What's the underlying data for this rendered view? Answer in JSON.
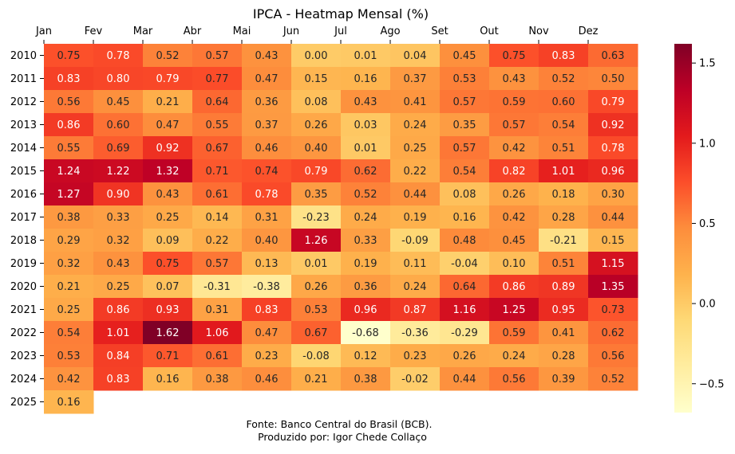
{
  "chart_data": {
    "type": "heatmap",
    "title": "IPCA - Heatmap Mensal (%)",
    "xlabel": "",
    "ylabel": "",
    "x_categories": [
      "Jan",
      "Fev",
      "Mar",
      "Abr",
      "Mai",
      "Jun",
      "Jul",
      "Ago",
      "Set",
      "Out",
      "Nov",
      "Dez"
    ],
    "y_categories": [
      "2010",
      "2011",
      "2012",
      "2013",
      "2014",
      "2015",
      "2016",
      "2017",
      "2018",
      "2019",
      "2020",
      "2021",
      "2022",
      "2023",
      "2024",
      "2025"
    ],
    "values": [
      [
        0.75,
        0.78,
        0.52,
        0.57,
        0.43,
        0.0,
        0.01,
        0.04,
        0.45,
        0.75,
        0.83,
        0.63
      ],
      [
        0.83,
        0.8,
        0.79,
        0.77,
        0.47,
        0.15,
        0.16,
        0.37,
        0.53,
        0.43,
        0.52,
        0.5
      ],
      [
        0.56,
        0.45,
        0.21,
        0.64,
        0.36,
        0.08,
        0.43,
        0.41,
        0.57,
        0.59,
        0.6,
        0.79
      ],
      [
        0.86,
        0.6,
        0.47,
        0.55,
        0.37,
        0.26,
        0.03,
        0.24,
        0.35,
        0.57,
        0.54,
        0.92
      ],
      [
        0.55,
        0.69,
        0.92,
        0.67,
        0.46,
        0.4,
        0.01,
        0.25,
        0.57,
        0.42,
        0.51,
        0.78
      ],
      [
        1.24,
        1.22,
        1.32,
        0.71,
        0.74,
        0.79,
        0.62,
        0.22,
        0.54,
        0.82,
        1.01,
        0.96
      ],
      [
        1.27,
        0.9,
        0.43,
        0.61,
        0.78,
        0.35,
        0.52,
        0.44,
        0.08,
        0.26,
        0.18,
        0.3
      ],
      [
        0.38,
        0.33,
        0.25,
        0.14,
        0.31,
        -0.23,
        0.24,
        0.19,
        0.16,
        0.42,
        0.28,
        0.44
      ],
      [
        0.29,
        0.32,
        0.09,
        0.22,
        0.4,
        1.26,
        0.33,
        -0.09,
        0.48,
        0.45,
        -0.21,
        0.15
      ],
      [
        0.32,
        0.43,
        0.75,
        0.57,
        0.13,
        0.01,
        0.19,
        0.11,
        -0.04,
        0.1,
        0.51,
        1.15
      ],
      [
        0.21,
        0.25,
        0.07,
        -0.31,
        -0.38,
        0.26,
        0.36,
        0.24,
        0.64,
        0.86,
        0.89,
        1.35
      ],
      [
        0.25,
        0.86,
        0.93,
        0.31,
        0.83,
        0.53,
        0.96,
        0.87,
        1.16,
        1.25,
        0.95,
        0.73
      ],
      [
        0.54,
        1.01,
        1.62,
        1.06,
        0.47,
        0.67,
        -0.68,
        -0.36,
        -0.29,
        0.59,
        0.41,
        0.62
      ],
      [
        0.53,
        0.84,
        0.71,
        0.61,
        0.23,
        -0.08,
        0.12,
        0.23,
        0.26,
        0.24,
        0.28,
        0.56
      ],
      [
        0.42,
        0.83,
        0.16,
        0.38,
        0.46,
        0.21,
        0.38,
        -0.02,
        0.44,
        0.56,
        0.39,
        0.52
      ],
      [
        0.16,
        null,
        null,
        null,
        null,
        null,
        null,
        null,
        null,
        null,
        null,
        null
      ]
    ],
    "value_format": "0.00",
    "color_scale": {
      "name": "YlOrRd",
      "vmin": -0.68,
      "vmax": 1.62
    },
    "colorbar_ticks": [
      1.5,
      1.0,
      0.5,
      0.0,
      -0.5
    ],
    "colorbar_tick_labels": [
      "1.5",
      "1.0",
      "0.5",
      "0.0",
      "−0.5"
    ],
    "grid": false,
    "x_axis_position": "top",
    "footer": [
      "Fonte: Banco Central do Brasil (BCB).",
      "Produzido por: Igor Chede Collaço"
    ]
  }
}
